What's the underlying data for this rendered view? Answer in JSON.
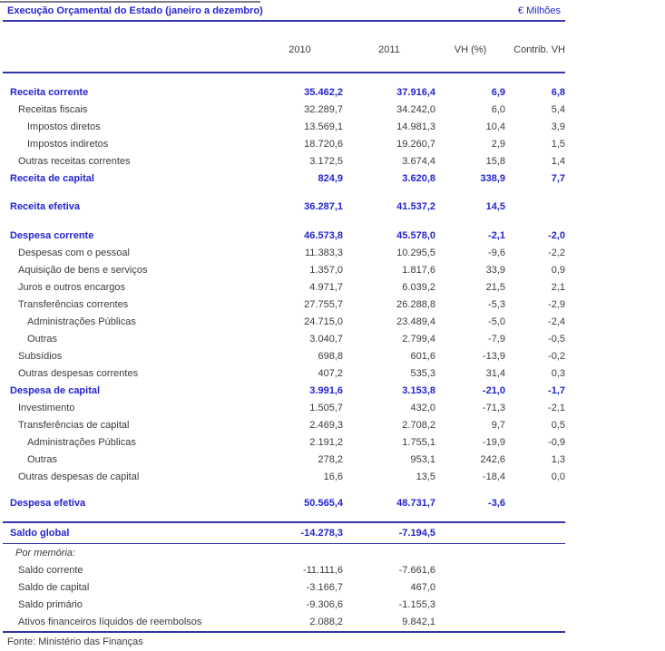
{
  "colors": {
    "accent_blue": "#2424cf",
    "rule_blue": "#3434ab",
    "text_black": "#3b3b3b"
  },
  "header": {
    "title": "Execução Orçamental do Estado (janeiro a dezembro)",
    "unit_label": "€ Milhões"
  },
  "table": {
    "columns": [
      "2010",
      "2011",
      "VH (%)",
      "Contrib. VH"
    ],
    "main_rows": [
      {
        "label": "Receita corrente",
        "indent": 0,
        "bold": true,
        "values": [
          "35.462,2",
          "37.916,4",
          "6,9",
          "6,8"
        ]
      },
      {
        "label": "Receitas fiscais",
        "indent": 1,
        "bold": false,
        "values": [
          "32.289,7",
          "34.242,0",
          "6,0",
          "5,4"
        ]
      },
      {
        "label": "Impostos diretos",
        "indent": 2,
        "bold": false,
        "values": [
          "13.569,1",
          "14.981,3",
          "10,4",
          "3,9"
        ]
      },
      {
        "label": "Impostos indiretos",
        "indent": 2,
        "bold": false,
        "values": [
          "18.720,6",
          "19.260,7",
          "2,9",
          "1,5"
        ]
      },
      {
        "label": "Outras receitas correntes",
        "indent": 1,
        "bold": false,
        "values": [
          "3.172,5",
          "3.674,4",
          "15,8",
          "1,4"
        ]
      },
      {
        "label": "Receita de capital",
        "indent": 0,
        "bold": true,
        "values": [
          "824,9",
          "3.620,8",
          "338,9",
          "7,7"
        ]
      },
      {
        "label": "Receita efetiva",
        "indent": 0,
        "bold": true,
        "space_before": 12,
        "values": [
          "36.287,1",
          "41.537,2",
          "14,5"
        ]
      },
      {
        "label": "Despesa corrente",
        "indent": 0,
        "bold": true,
        "space_before": 13,
        "values": [
          "46.573,8",
          "45.578,0",
          "-2,1",
          "-2,0"
        ]
      },
      {
        "label": "Despesas com o pessoal",
        "indent": 1,
        "bold": false,
        "values": [
          "11.383,3",
          "10.295,5",
          "-9,6",
          "-2,2"
        ]
      },
      {
        "label": "Aquisição de bens e serviços",
        "indent": 1,
        "bold": false,
        "values": [
          "1.357,0",
          "1.817,6",
          "33,9",
          "0,9"
        ]
      },
      {
        "label": "Juros e outros encargos",
        "indent": 1,
        "bold": false,
        "values": [
          "4.971,7",
          "6.039,2",
          "21,5",
          "2,1"
        ]
      },
      {
        "label": "Transferências correntes",
        "indent": 1,
        "bold": false,
        "values": [
          "27.755,7",
          "26.288,8",
          "-5,3",
          "-2,9"
        ]
      },
      {
        "label": "Administrações Públicas",
        "indent": 2,
        "bold": false,
        "values": [
          "24.715,0",
          "23.489,4",
          "-5,0",
          "-2,4"
        ]
      },
      {
        "label": "Outras",
        "indent": 2,
        "bold": false,
        "values": [
          "3.040,7",
          "2.799,4",
          "-7,9",
          "-0,5"
        ]
      },
      {
        "label": "Subsídios",
        "indent": 1,
        "bold": false,
        "values": [
          "698,8",
          "601,6",
          "-13,9",
          "-0,2"
        ]
      },
      {
        "label": "Outras despesas correntes",
        "indent": 1,
        "bold": false,
        "values": [
          "407,2",
          "535,3",
          "31,4",
          "0,3"
        ]
      },
      {
        "label": "Despesa de capital",
        "indent": 0,
        "bold": true,
        "values": [
          "3.991,6",
          "3.153,8",
          "-21,0",
          "-1,7"
        ]
      },
      {
        "label": "Investimento",
        "indent": 1,
        "bold": false,
        "values": [
          "1.505,7",
          "432,0",
          "-71,3",
          "-2,1"
        ]
      },
      {
        "label": "Transferências de capital",
        "indent": 1,
        "bold": false,
        "values": [
          "2.469,3",
          "2.708,2",
          "9,7",
          "0,5"
        ]
      },
      {
        "label": "Administrações Públicas",
        "indent": 2,
        "bold": false,
        "values": [
          "2.191,2",
          "1.755,1",
          "-19,9",
          "-0,9"
        ]
      },
      {
        "label": "Outras",
        "indent": 2,
        "bold": false,
        "values": [
          "278,2",
          "953,1",
          "242,6",
          "1,3"
        ]
      },
      {
        "label": "Outras despesas de capital",
        "indent": 1,
        "bold": false,
        "values": [
          "16,6",
          "13,5",
          "-18,4",
          "0,0"
        ]
      },
      {
        "label": "Despesa efetiva",
        "indent": 0,
        "bold": true,
        "space_before": 10,
        "values": [
          "50.565,4",
          "48.731,7",
          "-3,6"
        ]
      }
    ],
    "saldo_row": {
      "label": "Saldo global",
      "values": [
        "-14.278,3",
        "-7.194,5"
      ]
    },
    "memo_label": "Por memória:",
    "memo_rows": [
      {
        "label": "Saldo corrente",
        "indent": 1,
        "bold": false,
        "values": [
          "-11.111,6",
          "-7.661,6"
        ]
      },
      {
        "label": "Saldo de capital",
        "indent": 1,
        "bold": false,
        "values": [
          "-3.166,7",
          "467,0"
        ]
      },
      {
        "label": "Saldo primário",
        "indent": 1,
        "bold": false,
        "values": [
          "-9.306,6",
          "-1.155,3"
        ]
      },
      {
        "label": "Ativos financeiros líquidos de reembolsos",
        "indent": 1,
        "bold": false,
        "values": [
          "2.088,2",
          "9.842,1"
        ]
      }
    ]
  },
  "footer": {
    "source": "Fonte: Ministério das Finanças"
  }
}
